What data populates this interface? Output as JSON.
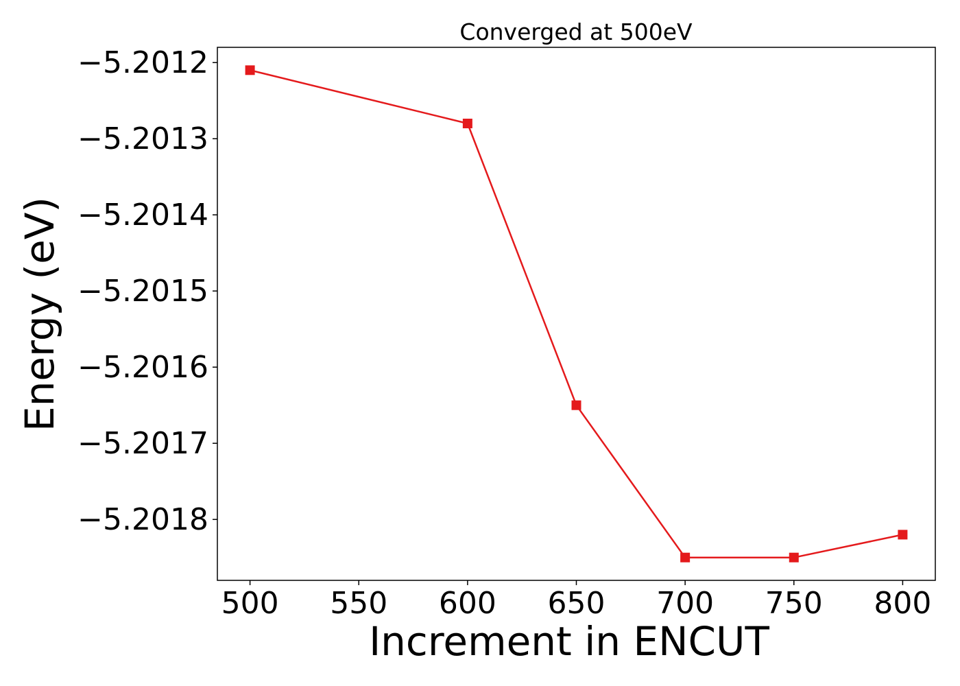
{
  "chart_data": {
    "type": "line",
    "title": "Converged at 500eV",
    "xlabel": "Increment in ENCUT",
    "ylabel": "Energy (eV)",
    "x": [
      500,
      600,
      650,
      700,
      750,
      800
    ],
    "series": [
      {
        "values": [
          -5.20121,
          -5.20128,
          -5.20165,
          -5.20185,
          -5.20185,
          -5.20182
        ],
        "color": "#e41a1c",
        "marker": "square"
      }
    ],
    "xticks": [
      500,
      550,
      600,
      650,
      700,
      750,
      800
    ],
    "xtick_labels": [
      "500",
      "550",
      "600",
      "650",
      "700",
      "750",
      "800"
    ],
    "yticks": [
      -5.2012,
      -5.2013,
      -5.2014,
      -5.2015,
      -5.2016,
      -5.2017,
      -5.2018
    ],
    "ytick_labels": [
      "−5.2012",
      "−5.2013",
      "−5.2014",
      "−5.2015",
      "−5.2016",
      "−5.2017",
      "−5.2018"
    ],
    "xlim": [
      485,
      815
    ],
    "ylim": [
      -5.20188,
      -5.20118
    ],
    "grid": false,
    "legend": "none"
  }
}
